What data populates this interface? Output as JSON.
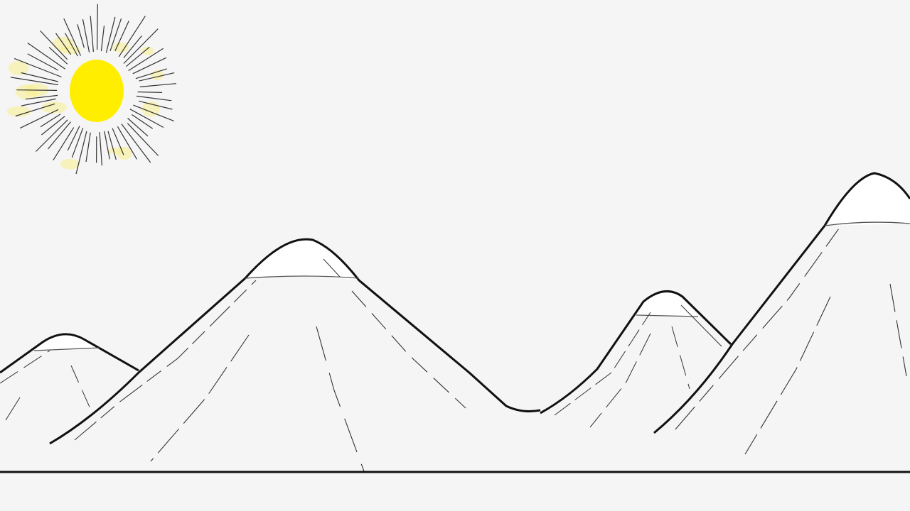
{
  "scene": {
    "background_color": "#f5f5f5",
    "sun_color": "#ffee00",
    "ray_color": "#333333",
    "sun_glow_color": "#f7ef8a",
    "outline_color": "#111111",
    "snow_color": "#ffffff"
  }
}
